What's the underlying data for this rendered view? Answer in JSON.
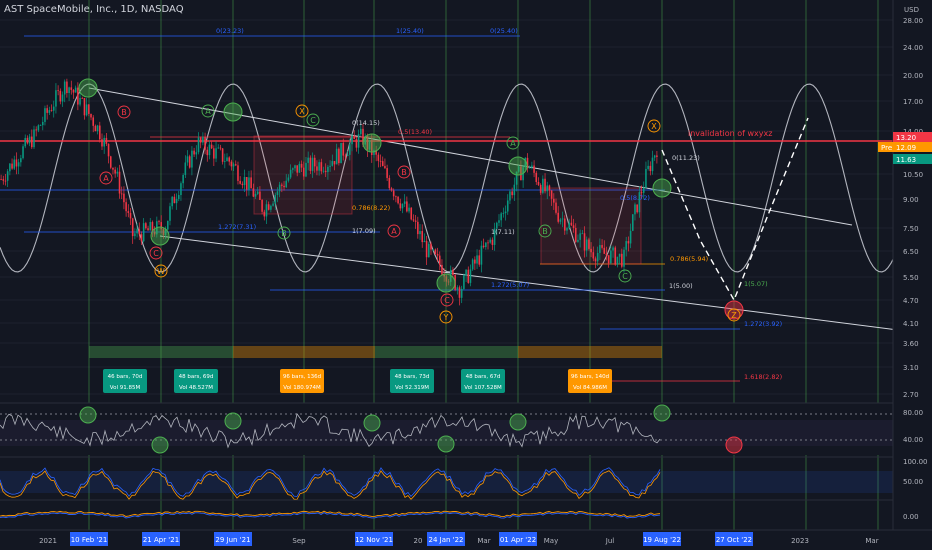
{
  "header": {
    "title": "AST SpaceMobile, Inc., 1D, NASDAQ"
  },
  "price_axis": {
    "currency_label": "USD",
    "ticks": [
      "28.00",
      "24.00",
      "20.00",
      "17.00",
      "14.00",
      "10.50",
      "9.00",
      "7.50",
      "6.50",
      "5.50",
      "4.70",
      "4.10",
      "3.60",
      "3.10",
      "2.70"
    ],
    "badges": [
      {
        "text": "13.20",
        "color": "#f23645"
      },
      {
        "text": "Pre",
        "color": "#ff9800"
      },
      {
        "text": "12.09",
        "color": "#ff9800"
      },
      {
        "text": "11.63",
        "color": "#089981"
      }
    ]
  },
  "indicator_axes": {
    "rsi": [
      "80.00",
      "40.00"
    ],
    "stoch": [
      "100.00",
      "50.00"
    ],
    "volume": [
      "0.00"
    ]
  },
  "time_axis": {
    "plain": [
      {
        "text": "2021",
        "x": 48
      },
      {
        "text": "Sep",
        "x": 299
      },
      {
        "text": "20",
        "x": 418
      },
      {
        "text": "Mar",
        "x": 484
      },
      {
        "text": "May",
        "x": 551
      },
      {
        "text": "Jul",
        "x": 610
      },
      {
        "text": "Mar",
        "x": 872
      }
    ],
    "highlighted": [
      {
        "text": "10 Feb '21",
        "x": 89
      },
      {
        "text": "21 Apr '21",
        "x": 161
      },
      {
        "text": "29 Jun '21",
        "x": 233
      },
      {
        "text": "12 Nov '21",
        "x": 374
      },
      {
        "text": "24 Jan '22",
        "x": 446
      },
      {
        "text": "01 Apr '22",
        "x": 518
      },
      {
        "text": "19 Aug '22",
        "x": 662
      },
      {
        "text": "27 Oct '22",
        "x": 734
      }
    ],
    "plain_right": [
      {
        "text": "2023",
        "x": 800
      }
    ]
  },
  "annotations": {
    "invalidation": "invalidation of wxyxz",
    "fib_top": [
      "0(23.23)",
      "1(25.40)",
      "0(25.40)"
    ],
    "fib_labels": [
      {
        "text": "0(14.15)",
        "color": "#d1d4dc"
      },
      {
        "text": "0.5(13.40)",
        "color": "#f23645"
      },
      {
        "text": "0.786(8.22)",
        "color": "#ff9800"
      },
      {
        "text": "1.272(7.31)",
        "color": "#2962ff"
      },
      {
        "text": "1(7.09)",
        "color": "#d1d4dc"
      },
      {
        "text": "1(7.11)",
        "color": "#d1d4dc"
      },
      {
        "text": "0(11.23)",
        "color": "#d1d4dc"
      },
      {
        "text": "0.5(8.72)",
        "color": "#2962ff"
      },
      {
        "text": "0.786(5.94)",
        "color": "#ff9800"
      },
      {
        "text": "1.272(5.07)",
        "color": "#2962ff"
      },
      {
        "text": "1(5.07)",
        "color": "#4caf50"
      },
      {
        "text": "1(5.00)",
        "color": "#d1d4dc"
      },
      {
        "text": "1.272(3.92)",
        "color": "#2962ff"
      },
      {
        "text": "1.618(2.82)",
        "color": "#f23645"
      }
    ],
    "wave_letters": [
      "A",
      "B",
      "C",
      "A",
      "B",
      "C",
      "A",
      "B",
      "C",
      "W",
      "X",
      "Y",
      "X",
      "Z",
      "A",
      "B",
      "C"
    ],
    "range_boxes": [
      {
        "line1": "46 bars, 70d",
        "line2": "Vol 91.85M",
        "color": "#089981"
      },
      {
        "line1": "48 bars, 69d",
        "line2": "Vol 48.527M",
        "color": "#089981"
      },
      {
        "line1": "96 bars, 136d",
        "line2": "Vol 180.974M",
        "color": "#ff9800"
      },
      {
        "line1": "48 bars, 73d",
        "line2": "Vol 52.319M",
        "color": "#089981"
      },
      {
        "line1": "48 bars, 67d",
        "line2": "Vol 107.528M",
        "color": "#089981"
      },
      {
        "line1": "96 bars, 140d",
        "line2": "Vol 84.986M",
        "color": "#ff9800"
      }
    ]
  },
  "colors": {
    "background": "#131722",
    "up": "#089981",
    "down": "#f23645",
    "grid": "#1e222d",
    "vertical": "#4caf50",
    "fib_blue": "#2962ff",
    "orange": "#ff9800"
  },
  "chart_data": {
    "type": "line",
    "title": "AST SpaceMobile, Inc., 1D, NASDAQ",
    "series": [
      {
        "x": [
          "2020-12",
          "2021-01",
          "2021-02",
          "2021-03",
          "2021-04",
          "2021-05",
          "2021-06",
          "2021-07",
          "2021-08",
          "2021-09",
          "2021-10",
          "2021-11",
          "2021-12",
          "2022-01",
          "2022-02",
          "2022-03",
          "2022-04",
          "2022-05",
          "2022-06",
          "2022-07",
          "2022-08"
        ],
        "values": [
          10.3,
          13.5,
          19.0,
          14.0,
          7.2,
          7.6,
          13.0,
          11.5,
          8.5,
          11.0,
          11.5,
          13.5,
          9.5,
          6.5,
          5.1,
          7.1,
          11.5,
          8.2,
          6.5,
          6.2,
          12.6
        ]
      }
    ],
    "ylim": [
      2.7,
      28
    ],
    "yscale": "log"
  }
}
